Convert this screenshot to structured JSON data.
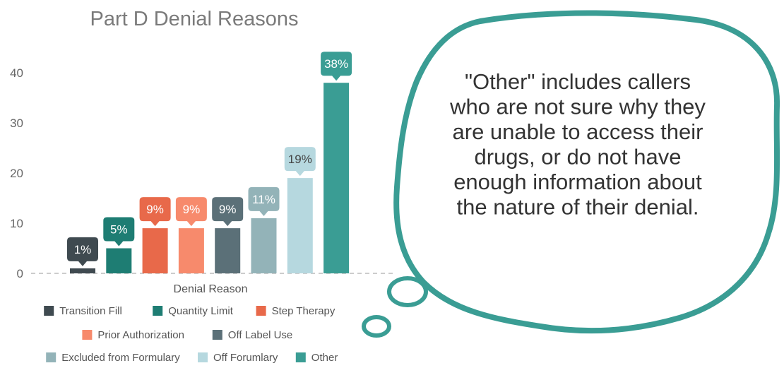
{
  "chart_data": {
    "type": "bar",
    "title": "Part D Denial Reasons",
    "xlabel": "Denial Reason",
    "ylabel": "",
    "ylim": [
      0,
      40
    ],
    "yticks": [
      0,
      10,
      20,
      30,
      40
    ],
    "grid": false,
    "legend_position": "bottom",
    "categories": [
      "Transition Fill",
      "Quantity Limit",
      "Step Therapy",
      "Prior Authorization",
      "Off Label Use",
      "Excluded from Formulary",
      "Off Forumlary",
      "Other"
    ],
    "values": [
      1,
      5,
      9,
      9,
      9,
      11,
      19,
      38
    ],
    "data_labels": [
      "1%",
      "5%",
      "9%",
      "9%",
      "9%",
      "11%",
      "19%",
      "38%"
    ],
    "colors": [
      "#3f4a50",
      "#1e7d73",
      "#e8694a",
      "#f78a6c",
      "#5b7078",
      "#93b3b8",
      "#b6d8df",
      "#3a9d94"
    ],
    "label_text_colors": [
      "#ffffff",
      "#ffffff",
      "#ffffff",
      "#ffffff",
      "#ffffff",
      "#ffffff",
      "#444444",
      "#ffffff"
    ]
  },
  "callout": {
    "lines": [
      "\"Other\" includes callers",
      "who are not sure why they",
      "are unable to access their",
      "drugs, or do not have",
      "enough information about",
      "the nature of their denial."
    ],
    "border_color": "#3a9d94"
  }
}
